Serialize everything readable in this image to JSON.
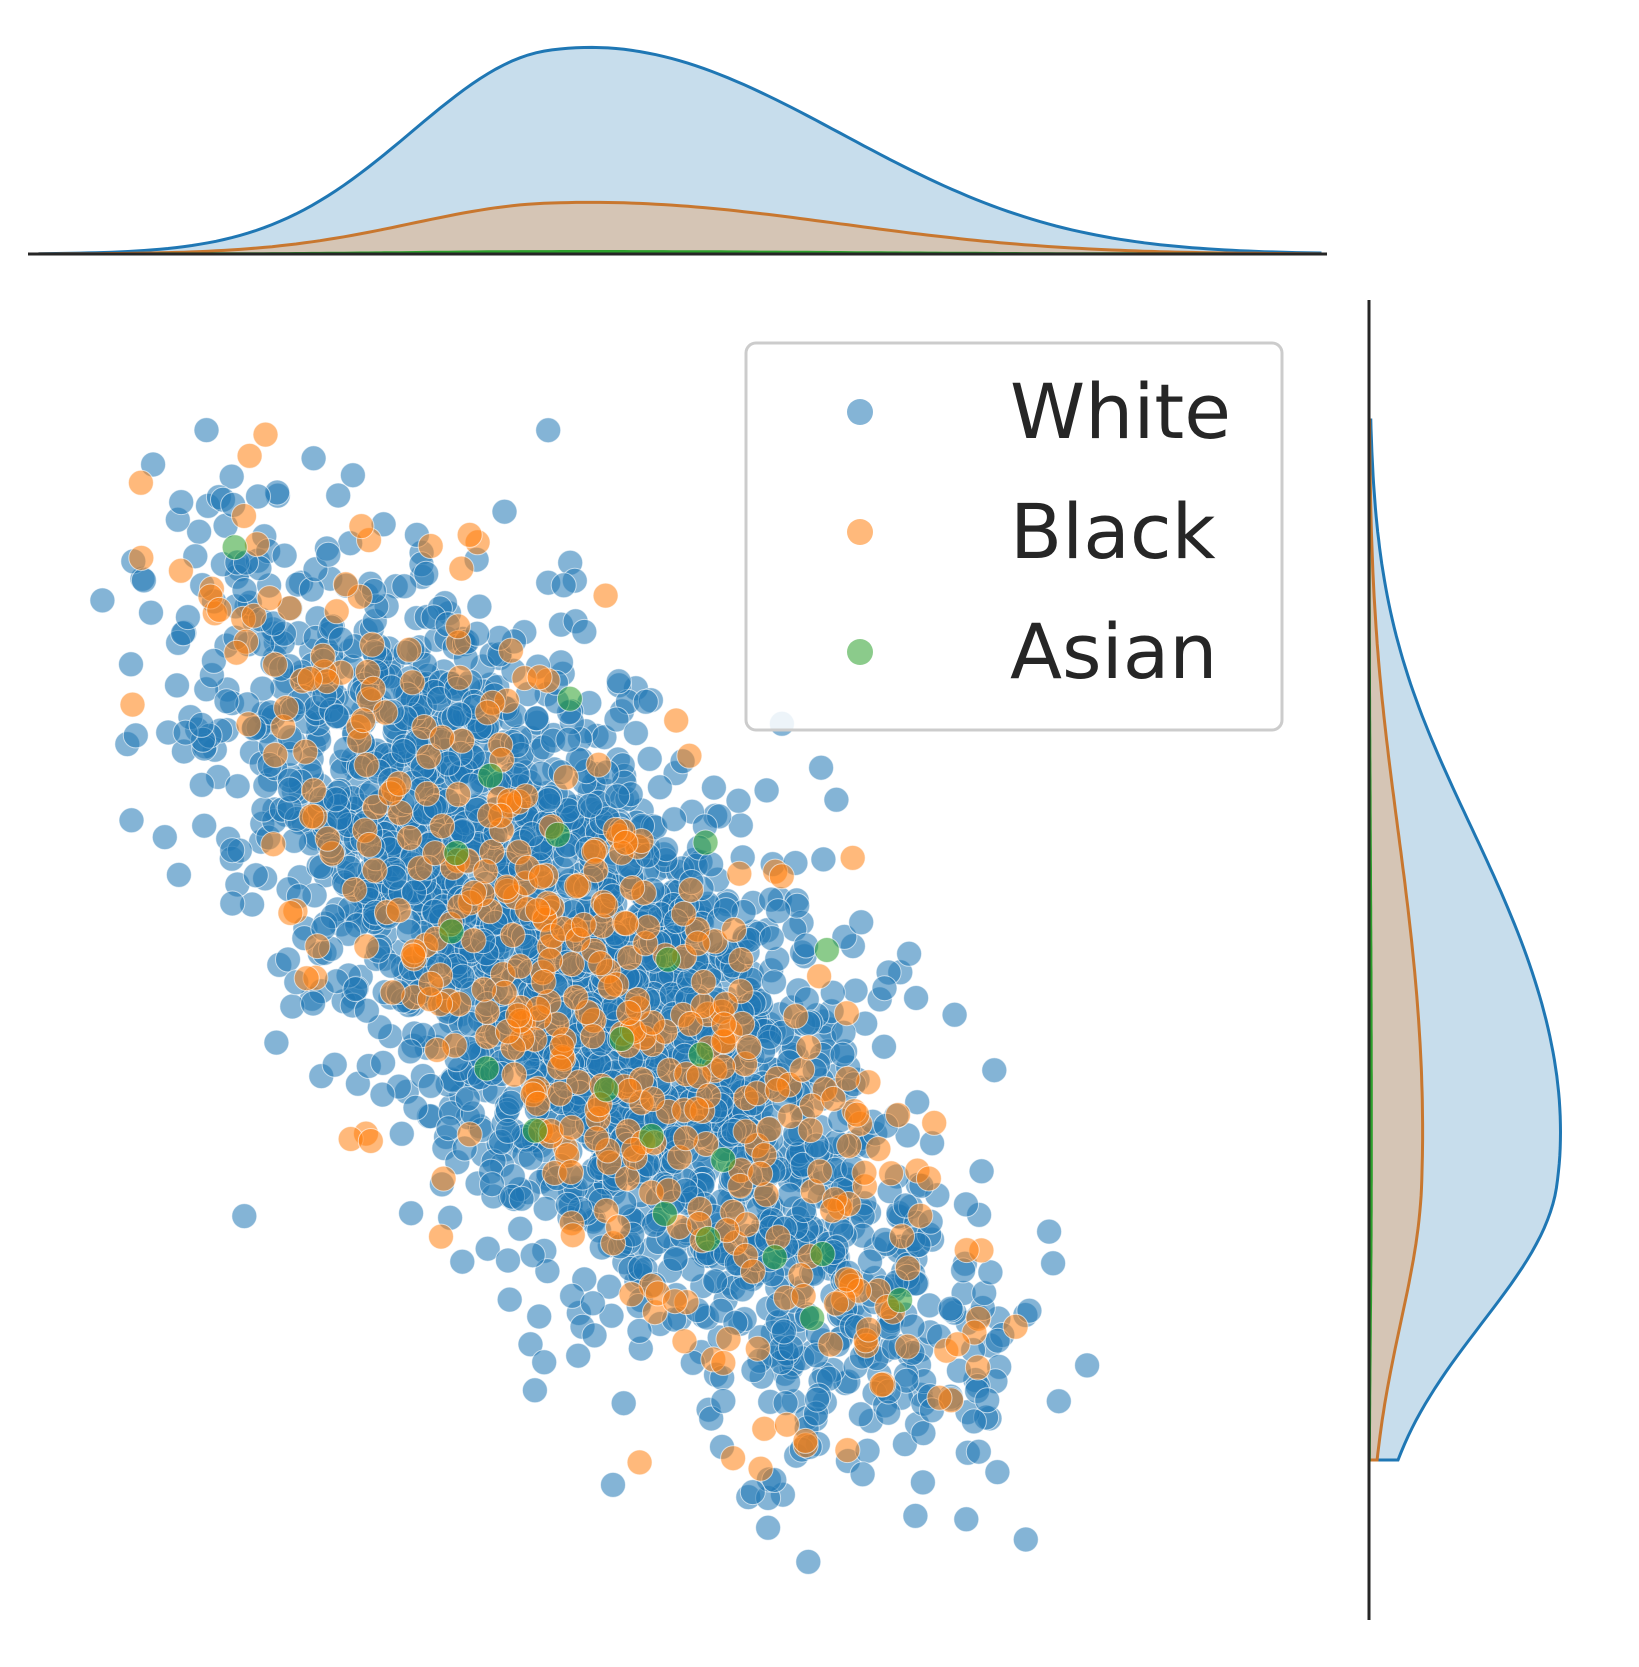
{
  "chart_data": {
    "type": "scatter",
    "title": "",
    "xlabel": "",
    "ylabel": "",
    "xlim": [
      0,
      100
    ],
    "ylim": [
      0,
      100
    ],
    "grid": false,
    "marginals": "kde-filled",
    "legend": {
      "placement": "top-right",
      "entries": [
        "White",
        "Black",
        "Asian"
      ]
    },
    "series": [
      {
        "name": "White",
        "color": "#1f77b4",
        "n_points": 2600
      },
      {
        "name": "Black",
        "color": "#ff7f0e",
        "n_points": 420
      },
      {
        "name": "Asian",
        "color": "#2ca02c",
        "n_points": 22
      }
    ],
    "trend": {
      "x_start": 12,
      "y_start": 83,
      "x_end": 73,
      "y_end": 13
    },
    "kde_x_peak": 40,
    "kde_y_peak": 33
  }
}
